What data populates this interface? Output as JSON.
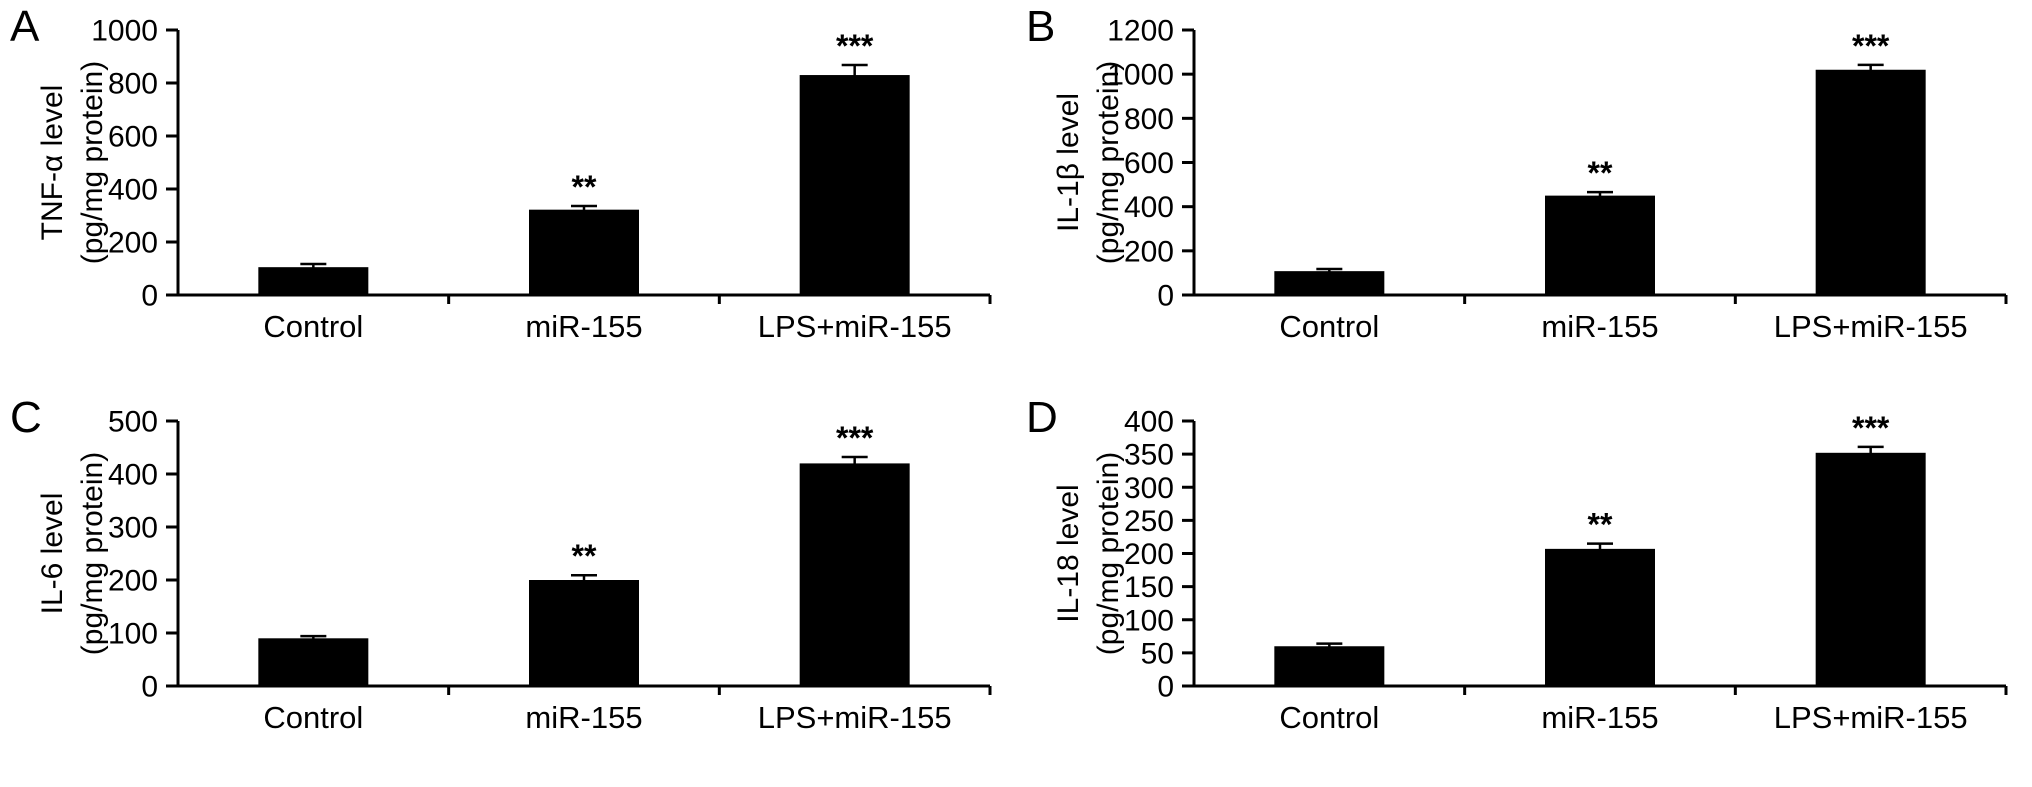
{
  "figure": {
    "background": "#ffffff",
    "bar_color": "#000000",
    "axis_color": "#000000"
  },
  "chart_data": [
    {
      "type": "bar",
      "panel": "A",
      "ylabel_line1": "TNF-α level",
      "ylabel_line2": "(pg/mg protein)",
      "categories": [
        "Control",
        "miR-155",
        "LPS+miR-155"
      ],
      "values": [
        105,
        322,
        830
      ],
      "errors": [
        12,
        14,
        38
      ],
      "annotations": [
        "",
        "**",
        "***"
      ],
      "ylim": [
        0,
        1000
      ],
      "ytick_step": 200
    },
    {
      "type": "bar",
      "panel": "B",
      "ylabel_line1": "IL-1β level",
      "ylabel_line2": "(pg/mg protein)",
      "categories": [
        "Control",
        "miR-155",
        "LPS+miR-155"
      ],
      "values": [
        108,
        450,
        1020
      ],
      "errors": [
        10,
        16,
        22
      ],
      "annotations": [
        "",
        "**",
        "***"
      ],
      "ylim": [
        0,
        1200
      ],
      "ytick_step": 200
    },
    {
      "type": "bar",
      "panel": "C",
      "ylabel_line1": "IL-6 level",
      "ylabel_line2": "(pg/mg protein)",
      "categories": [
        "Control",
        "miR-155",
        "LPS+miR-155"
      ],
      "values": [
        90,
        200,
        420
      ],
      "errors": [
        4,
        9,
        12
      ],
      "annotations": [
        "",
        "**",
        "***"
      ],
      "ylim": [
        0,
        500
      ],
      "ytick_step": 100
    },
    {
      "type": "bar",
      "panel": "D",
      "ylabel_line1": "IL-18 level",
      "ylabel_line2": "(pg/mg protein)",
      "categories": [
        "Control",
        "miR-155",
        "LPS+miR-155"
      ],
      "values": [
        60,
        207,
        352
      ],
      "errors": [
        4,
        8,
        9
      ],
      "annotations": [
        "",
        "**",
        "***"
      ],
      "ylim": [
        0,
        400
      ],
      "ytick_step": 50
    }
  ]
}
